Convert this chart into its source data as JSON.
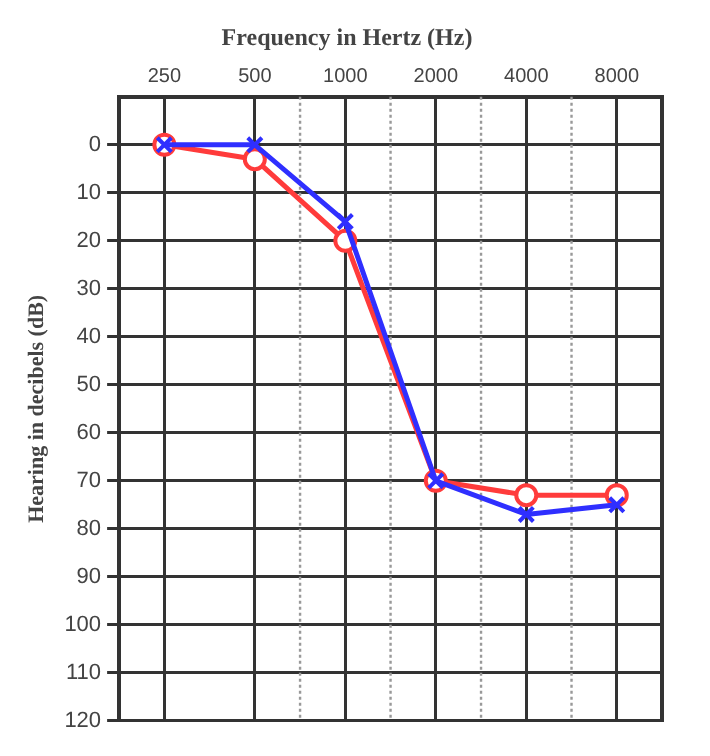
{
  "chart_data": {
    "type": "line",
    "title": "Frequency in Hertz (Hz)",
    "ylabel": "Hearing in decibels (dB)",
    "categories": [
      "250",
      "500",
      "1000",
      "2000",
      "4000",
      "8000"
    ],
    "series": [
      {
        "color": "#ff3b3b",
        "marker": "circle",
        "values": [
          0,
          3,
          20,
          70,
          73,
          73
        ]
      },
      {
        "color": "#2f2fff",
        "marker": "cross",
        "values": [
          0,
          0,
          16,
          70,
          77,
          75
        ]
      }
    ],
    "ylim": [
      120,
      -10
    ],
    "yticks": [
      0,
      10,
      20,
      30,
      40,
      50,
      60,
      70,
      80,
      90,
      100,
      110,
      120
    ],
    "grid": true,
    "legend": false,
    "line_style": "solid"
  }
}
